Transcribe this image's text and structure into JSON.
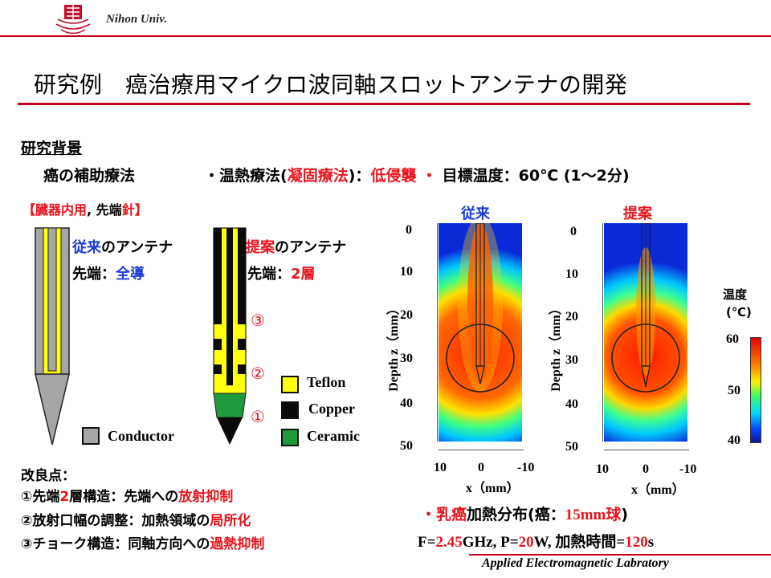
{
  "header": {
    "university": "Nihon Univ."
  },
  "title": "研究例　癌治療用マイクロ波同軸スロットアンテナの開発",
  "background": {
    "heading": "研究背景",
    "auxiliary": "癌の補助療法",
    "bullet": {
      "bullet": "・",
      "t1": "温熱療法(",
      "t2": "凝固療法",
      "t3": ")：",
      "t4": "低侵襲",
      "t5": " ・",
      "t6": " 目標温度：60℃ (1～2分)"
    }
  },
  "organ_note": {
    "o": "【",
    "r": "臓器内用",
    "m": ", 先端",
    "n": "針",
    "c": "】"
  },
  "conventional": {
    "name": "従来",
    "suffix": "のアンテナ",
    "tip_label": "先端：",
    "tip_value": "全導"
  },
  "proposed": {
    "name": "提案",
    "suffix": "のアンテナ",
    "tip_label": "先端：",
    "tip_value": "2層"
  },
  "markers": [
    "③",
    "②",
    "①"
  ],
  "legend": [
    {
      "label": "Teflon",
      "color": "#ffff10"
    },
    {
      "label": "Copper",
      "color": "#0a0a0a"
    },
    {
      "label": "Ceramic",
      "color": "#1e9a3c"
    }
  ],
  "conductor_label": "Conductor",
  "heatmaps": {
    "left_title": "従来",
    "right_title": "提案",
    "y_label": "Depth z（mm）",
    "x_label": "x（mm）",
    "y_ticks": [
      "0",
      "10",
      "20",
      "30",
      "40",
      "50"
    ],
    "x_ticks": [
      "10",
      "0",
      "-10"
    ]
  },
  "colorbar": {
    "title1": "温度",
    "title2": "(℃)",
    "max": "60",
    "mid": "50",
    "min": "40"
  },
  "improvements": {
    "heading": "改良点：",
    "i1": {
      "a": "①先端",
      "b": "2",
      "c": "層構造：先端への",
      "d": "放射抑制"
    },
    "i2": {
      "a": "②放射口幅の調整：加熱領域の",
      "b": "局所化"
    },
    "i3": {
      "a": "③チョーク構造：同軸方向への",
      "b": "過熱抑制"
    }
  },
  "result": {
    "bullet": "・",
    "a": "乳癌",
    "b": "加熱分布(癌：",
    "c": "15mm",
    "d": "球",
    "e": ")",
    "f1": "F=",
    "f2": "2.45",
    "f3": "GHz, P=",
    "f4": "20",
    "f5": "W, 加熱時間=",
    "f6": "120",
    "f7": "s"
  },
  "footer": {
    "lab": "Applied Electromagnetic Labratory"
  }
}
